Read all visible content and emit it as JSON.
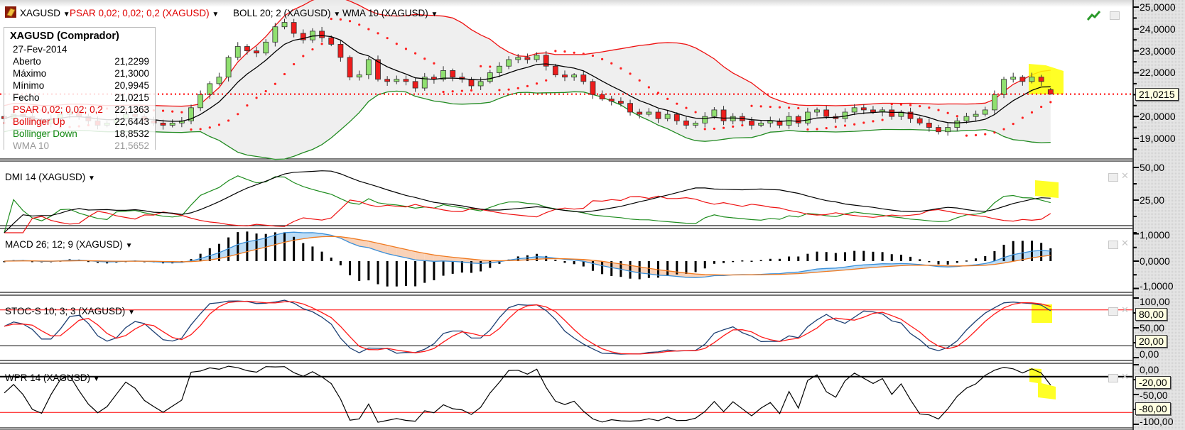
{
  "header": {
    "symbol": "XAGUSD",
    "psar": "PSAR 0,02; 0,02; 0,2 (XAGUSD)",
    "boll": "BOLL 20; 2 (XAGUSD)",
    "wma": "WMA 10 (XAGUSD)",
    "dropdown_glyph": "▼"
  },
  "info": {
    "title": "XAGUSD (Comprador)",
    "date": "27-Fev-2014",
    "rows": [
      {
        "label": "Aberto",
        "value": "21,2299"
      },
      {
        "label": "Máximo",
        "value": "21,3000"
      },
      {
        "label": "Mínimo",
        "value": "20,9945"
      },
      {
        "label": "Fecho",
        "value": "21,0215"
      },
      {
        "label": "PSAR 0,02; 0,02; 0,2",
        "value": "22,1363"
      },
      {
        "label": "Bollinger Up",
        "value": "22,6443"
      },
      {
        "label": "Bollinger Down",
        "value": "18,8532"
      },
      {
        "label": "WMA 10",
        "value": "21,5652"
      }
    ]
  },
  "panes": {
    "dmi": "DMI 14 (XAGUSD)",
    "macd": "MACD 26; 12; 9 (XAGUSD)",
    "stoc": "STOC-S 10; 3; 3 (XAGUSD)",
    "wpr": "WPR 14 (XAGUSD)"
  },
  "icons": {
    "symbol": "gold-bar-icon",
    "trend": "trend-up-icon",
    "restore": "window-restore-icon",
    "close": "close-icon"
  },
  "colors": {
    "bull": "#90e070",
    "bear": "#ee1c1c",
    "psar": "#ff2020",
    "boll_up": "#ee1111",
    "boll_down": "#228b22",
    "wma": "#000000",
    "macd": "#3a8fd8",
    "signal": "#f07a20",
    "stoch_k": "#1c3f73",
    "stoch_d": "#ff1a1a",
    "highlight": "#ffff00",
    "band_fill": "#ebebeb"
  },
  "chart_data": [
    {
      "type": "candlestick",
      "symbol": "XAGUSD",
      "closes": [
        19.9,
        20.1,
        20.0,
        19.8,
        19.7,
        19.9,
        20.1,
        20.2,
        20.0,
        19.8,
        19.6,
        19.7,
        19.9,
        20.1,
        20.0,
        19.8,
        19.7,
        19.6,
        19.7,
        19.8,
        20.4,
        21.0,
        21.5,
        21.8,
        22.7,
        23.2,
        23.0,
        22.9,
        23.4,
        24.1,
        24.3,
        23.8,
        23.5,
        23.9,
        23.6,
        23.3,
        22.7,
        21.8,
        21.9,
        22.6,
        21.7,
        21.6,
        21.7,
        21.6,
        21.3,
        21.8,
        21.7,
        22.1,
        21.8,
        21.7,
        21.4,
        21.6,
        22.0,
        22.3,
        22.6,
        22.7,
        22.6,
        22.8,
        22.3,
        21.9,
        21.8,
        21.9,
        21.6,
        21.0,
        20.8,
        20.7,
        20.6,
        20.2,
        20.1,
        20.2,
        19.9,
        20.1,
        19.8,
        19.6,
        19.7,
        20.0,
        20.3,
        19.8,
        20.0,
        19.8,
        19.6,
        19.7,
        19.8,
        19.6,
        20.0,
        19.7,
        20.2,
        20.3,
        20.0,
        19.9,
        20.2,
        20.4,
        20.3,
        20.2,
        20.3,
        20.0,
        20.2,
        19.9,
        19.7,
        19.5,
        19.3,
        19.5,
        19.8,
        20.0,
        20.1,
        20.3,
        21.0,
        21.7,
        21.8,
        21.6,
        21.8,
        21.6,
        21.0215
      ],
      "last_candle": {
        "date": "27-Fev-2014",
        "open": 21.2299,
        "high": 21.3,
        "low": 20.9945,
        "close": 21.0215
      },
      "current_price": 21.0215,
      "current_price_label": "21,0215",
      "y_ticks": [
        25,
        24,
        23,
        22,
        21,
        20,
        19
      ],
      "y_tick_labels": [
        "25,0000",
        "24,0000",
        "23,0000",
        "22,0000",
        "",
        "20,0000",
        "19,0000"
      ],
      "overlays": [
        "PSAR 0,02; 0,02; 0,2",
        "Bollinger 20; 2",
        "WMA 10"
      ]
    },
    {
      "type": "line",
      "name": "DMI 14",
      "series": [
        "+DI",
        "-DI",
        "ADX"
      ],
      "y_ticks": [
        50,
        25
      ],
      "y_tick_labels": [
        "50,00",
        "25,00"
      ]
    },
    {
      "type": "line",
      "name": "MACD 26; 12; 9",
      "series": [
        "MACD",
        "Signal",
        "Histogram"
      ],
      "y_ticks": [
        1,
        0,
        -1
      ],
      "y_tick_labels": [
        "1,0000",
        "0,0000",
        "-1,0000"
      ]
    },
    {
      "type": "line",
      "name": "STOC-S 10; 3; 3",
      "series": [
        "%K",
        "%D"
      ],
      "y_ticks": [
        100,
        50,
        0
      ],
      "y_tick_labels": [
        "100,00",
        "50,00",
        "0,00"
      ],
      "levels": [
        80,
        20
      ],
      "level_labels": [
        "80,00",
        "20,00"
      ]
    },
    {
      "type": "line",
      "name": "WPR 14",
      "y_ticks": [
        0,
        -50,
        -100
      ],
      "y_tick_labels": [
        "0,00",
        "-50,00",
        "-100,00"
      ],
      "levels": [
        -20,
        -80
      ],
      "level_labels": [
        "-20,00",
        "-80,00"
      ]
    }
  ]
}
